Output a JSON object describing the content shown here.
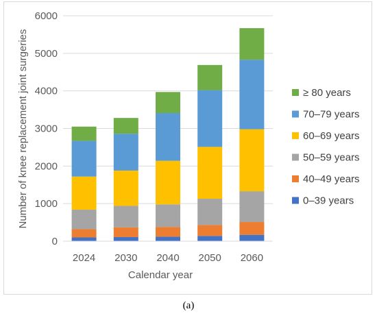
{
  "caption": "(a)",
  "chart_data": {
    "type": "bar",
    "stacked": true,
    "xlabel": "Calendar year",
    "ylabel": "Number of knee replacement joint surgeries",
    "categories": [
      "2024",
      "2030",
      "2040",
      "2050",
      "2060"
    ],
    "ylim": [
      0,
      6000
    ],
    "yticks": [
      0,
      1000,
      2000,
      3000,
      4000,
      5000,
      6000
    ],
    "grid": "horizontal",
    "legend_position": "right",
    "series": [
      {
        "name": "0–39 years",
        "color": "#4472c4",
        "values": [
          100,
          110,
          120,
          140,
          170
        ]
      },
      {
        "name": "40–49 years",
        "color": "#ed7d31",
        "values": [
          220,
          260,
          260,
          290,
          340
        ]
      },
      {
        "name": "50–59 years",
        "color": "#a5a5a5",
        "values": [
          520,
          570,
          600,
          700,
          820
        ]
      },
      {
        "name": "60–69 years",
        "color": "#ffc000",
        "values": [
          880,
          940,
          1160,
          1380,
          1650
        ]
      },
      {
        "name": "70–79 years",
        "color": "#5b9bd5",
        "values": [
          950,
          980,
          1270,
          1510,
          1850
        ]
      },
      {
        "name": "≥ 80 years",
        "color": "#70ad47",
        "values": [
          380,
          420,
          560,
          670,
          840
        ]
      }
    ]
  }
}
